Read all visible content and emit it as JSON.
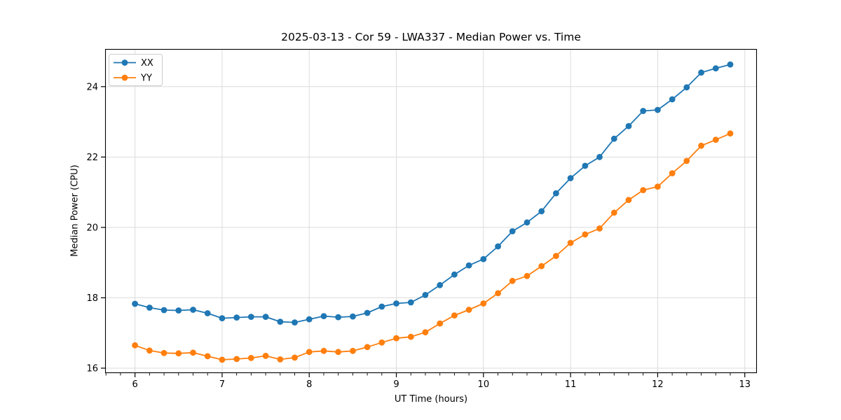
{
  "figure": {
    "title": "2025-03-13 - Cor 59 - LWA337 - Median Power vs. Time"
  },
  "chart_data": {
    "type": "line",
    "title": "2025-03-13 - Cor 59 - LWA337 - Median Power vs. Time",
    "xlabel": "UT Time (hours)",
    "ylabel": "Median Power (CPU)",
    "xlim": [
      5.657,
      13.139
    ],
    "ylim": [
      15.86,
      25.07
    ],
    "xticks": [
      6,
      7,
      8,
      9,
      10,
      11,
      12,
      13
    ],
    "yticks": [
      16,
      18,
      20,
      22,
      24
    ],
    "x_minor_step": 0.1667,
    "grid": true,
    "legend": {
      "position": "upper-left",
      "entries": [
        "XX",
        "YY"
      ]
    },
    "x": [
      6.0,
      6.167,
      6.333,
      6.5,
      6.667,
      6.833,
      7.0,
      7.167,
      7.333,
      7.5,
      7.667,
      7.833,
      8.0,
      8.167,
      8.333,
      8.5,
      8.667,
      8.833,
      9.0,
      9.167,
      9.333,
      9.5,
      9.667,
      9.833,
      10.0,
      10.167,
      10.333,
      10.5,
      10.667,
      10.833,
      11.0,
      11.167,
      11.333,
      11.5,
      11.667,
      11.833,
      12.0,
      12.167,
      12.333,
      12.5,
      12.667,
      12.833
    ],
    "series": [
      {
        "name": "XX",
        "color": "#1f77b4",
        "values": [
          17.83,
          17.72,
          17.65,
          17.64,
          17.66,
          17.56,
          17.42,
          17.44,
          17.46,
          17.46,
          17.32,
          17.3,
          17.39,
          17.48,
          17.45,
          17.47,
          17.57,
          17.75,
          17.84,
          17.87,
          18.08,
          18.36,
          18.66,
          18.92,
          19.1,
          19.46,
          19.89,
          20.14,
          20.46,
          20.97,
          21.4,
          21.75,
          22.0,
          22.52,
          22.88,
          23.31,
          23.34,
          23.64,
          23.98,
          24.4,
          24.52,
          24.63
        ]
      },
      {
        "name": "YY",
        "color": "#ff7f0e",
        "values": [
          16.65,
          16.5,
          16.43,
          16.42,
          16.44,
          16.34,
          16.24,
          16.26,
          16.29,
          16.35,
          16.25,
          16.3,
          16.46,
          16.49,
          16.46,
          16.49,
          16.6,
          16.73,
          16.85,
          16.89,
          17.02,
          17.27,
          17.5,
          17.66,
          17.84,
          18.13,
          18.48,
          18.62,
          18.9,
          19.19,
          19.56,
          19.8,
          19.97,
          20.42,
          20.78,
          21.06,
          21.16,
          21.54,
          21.89,
          22.32,
          22.49,
          22.67
        ]
      }
    ]
  },
  "colors": {
    "grid": "#dcdcdc",
    "spine": "#000000",
    "text": "#000000",
    "legend_border": "#cccccc",
    "background": "#ffffff"
  }
}
